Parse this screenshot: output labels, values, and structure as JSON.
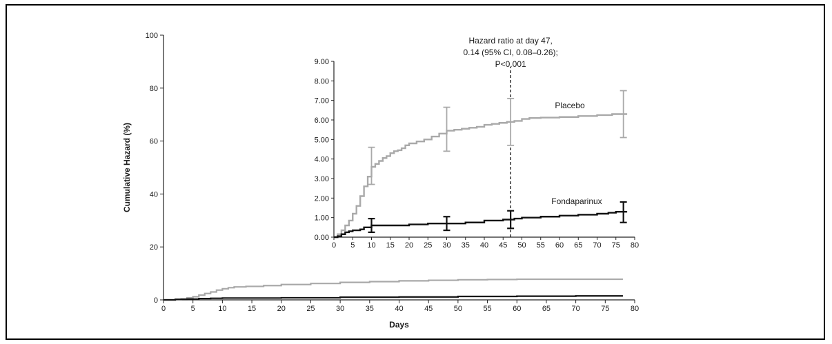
{
  "chart_data": [
    {
      "id": "main",
      "type": "line",
      "xlabel": "Days",
      "ylabel": "Cumulative Hazard (%)",
      "xlim": [
        0,
        80
      ],
      "ylim": [
        0,
        100
      ],
      "x_ticks": [
        0,
        5,
        10,
        15,
        20,
        25,
        30,
        35,
        40,
        45,
        50,
        55,
        60,
        65,
        70,
        75,
        80
      ],
      "y_ticks": [
        0,
        20,
        40,
        60,
        80,
        100
      ],
      "step": true,
      "series": [
        {
          "color": "#a9a9a9",
          "points": [
            [
              0,
              0
            ],
            [
              2,
              0.2
            ],
            [
              3,
              0.4
            ],
            [
              4,
              0.8
            ],
            [
              5,
              1.2
            ],
            [
              6,
              1.8
            ],
            [
              7,
              2.4
            ],
            [
              8,
              3.0
            ],
            [
              9,
              3.7
            ],
            [
              10,
              4.2
            ],
            [
              11,
              4.6
            ],
            [
              12,
              4.9
            ],
            [
              14,
              5.1
            ],
            [
              17,
              5.4
            ],
            [
              20,
              5.8
            ],
            [
              25,
              6.2
            ],
            [
              30,
              6.6
            ],
            [
              35,
              6.9
            ],
            [
              40,
              7.2
            ],
            [
              45,
              7.4
            ],
            [
              50,
              7.6
            ],
            [
              55,
              7.7
            ],
            [
              60,
              7.8
            ],
            [
              70,
              7.8
            ],
            [
              78,
              7.8
            ]
          ]
        },
        {
          "color": "#111111",
          "points": [
            [
              0,
              0
            ],
            [
              2,
              0.2
            ],
            [
              4,
              0.3
            ],
            [
              6,
              0.5
            ],
            [
              8,
              0.6
            ],
            [
              10,
              0.7
            ],
            [
              15,
              0.7
            ],
            [
              20,
              0.8
            ],
            [
              30,
              1.0
            ],
            [
              40,
              1.1
            ],
            [
              50,
              1.3
            ],
            [
              60,
              1.4
            ],
            [
              70,
              1.5
            ],
            [
              78,
              1.5
            ]
          ]
        }
      ]
    },
    {
      "id": "inset",
      "type": "line",
      "xlim": [
        0,
        80
      ],
      "ylim": [
        0,
        9
      ],
      "x_ticks": [
        0,
        5,
        10,
        15,
        20,
        25,
        30,
        35,
        40,
        45,
        50,
        55,
        60,
        65,
        70,
        75,
        80
      ],
      "y_ticks": [
        "0.00",
        "1.00",
        "2.00",
        "3.00",
        "4.00",
        "5.00",
        "6.00",
        "7.00",
        "8.00",
        "9.00"
      ],
      "step": true,
      "annotation": {
        "x": 47,
        "lines": [
          "Hazard ratio at day 47,",
          "0.14 (95% CI, 0.08–0.26);",
          "P<0.001"
        ]
      },
      "series": [
        {
          "name": "Placebo",
          "color": "#a9a9a9",
          "points": [
            [
              0,
              0
            ],
            [
              1,
              0.15
            ],
            [
              2,
              0.35
            ],
            [
              3,
              0.6
            ],
            [
              4,
              0.85
            ],
            [
              5,
              1.2
            ],
            [
              6,
              1.6
            ],
            [
              7,
              2.1
            ],
            [
              8,
              2.6
            ],
            [
              9,
              3.1
            ],
            [
              10,
              3.6
            ],
            [
              11,
              3.75
            ],
            [
              12,
              3.9
            ],
            [
              13,
              4.05
            ],
            [
              14,
              4.15
            ],
            [
              15,
              4.3
            ],
            [
              16,
              4.4
            ],
            [
              17,
              4.45
            ],
            [
              18,
              4.55
            ],
            [
              19,
              4.7
            ],
            [
              20,
              4.8
            ],
            [
              22,
              4.9
            ],
            [
              24,
              5.0
            ],
            [
              26,
              5.15
            ],
            [
              28,
              5.3
            ],
            [
              30,
              5.45
            ],
            [
              32,
              5.5
            ],
            [
              34,
              5.55
            ],
            [
              36,
              5.6
            ],
            [
              38,
              5.65
            ],
            [
              40,
              5.75
            ],
            [
              42,
              5.8
            ],
            [
              44,
              5.85
            ],
            [
              46,
              5.9
            ],
            [
              48,
              5.95
            ],
            [
              50,
              6.05
            ],
            [
              52,
              6.1
            ],
            [
              55,
              6.12
            ],
            [
              60,
              6.15
            ],
            [
              65,
              6.2
            ],
            [
              70,
              6.25
            ],
            [
              74,
              6.3
            ],
            [
              78,
              6.3
            ]
          ],
          "error_bars": [
            {
              "x": 10,
              "y": 3.65,
              "low": 2.7,
              "high": 4.6
            },
            {
              "x": 30,
              "y": 5.5,
              "low": 4.4,
              "high": 6.65
            },
            {
              "x": 47,
              "y": 5.9,
              "low": 4.7,
              "high": 7.1
            },
            {
              "x": 77,
              "y": 6.3,
              "low": 5.1,
              "high": 7.5
            }
          ]
        },
        {
          "name": "Fondaparinux",
          "color": "#111111",
          "points": [
            [
              0,
              0
            ],
            [
              1,
              0.05
            ],
            [
              2,
              0.15
            ],
            [
              3,
              0.25
            ],
            [
              4,
              0.3
            ],
            [
              5,
              0.35
            ],
            [
              7,
              0.4
            ],
            [
              8,
              0.5
            ],
            [
              10,
              0.6
            ],
            [
              15,
              0.6
            ],
            [
              20,
              0.65
            ],
            [
              25,
              0.7
            ],
            [
              30,
              0.7
            ],
            [
              35,
              0.75
            ],
            [
              40,
              0.85
            ],
            [
              45,
              0.9
            ],
            [
              48,
              0.95
            ],
            [
              50,
              1.0
            ],
            [
              55,
              1.05
            ],
            [
              60,
              1.1
            ],
            [
              65,
              1.15
            ],
            [
              70,
              1.2
            ],
            [
              73,
              1.25
            ],
            [
              75,
              1.3
            ],
            [
              78,
              1.3
            ]
          ],
          "error_bars": [
            {
              "x": 10,
              "y": 0.6,
              "low": 0.25,
              "high": 0.95
            },
            {
              "x": 30,
              "y": 0.7,
              "low": 0.35,
              "high": 1.05
            },
            {
              "x": 47,
              "y": 0.9,
              "low": 0.45,
              "high": 1.35
            },
            {
              "x": 77,
              "y": 1.3,
              "low": 0.75,
              "high": 1.8
            }
          ]
        }
      ]
    }
  ]
}
